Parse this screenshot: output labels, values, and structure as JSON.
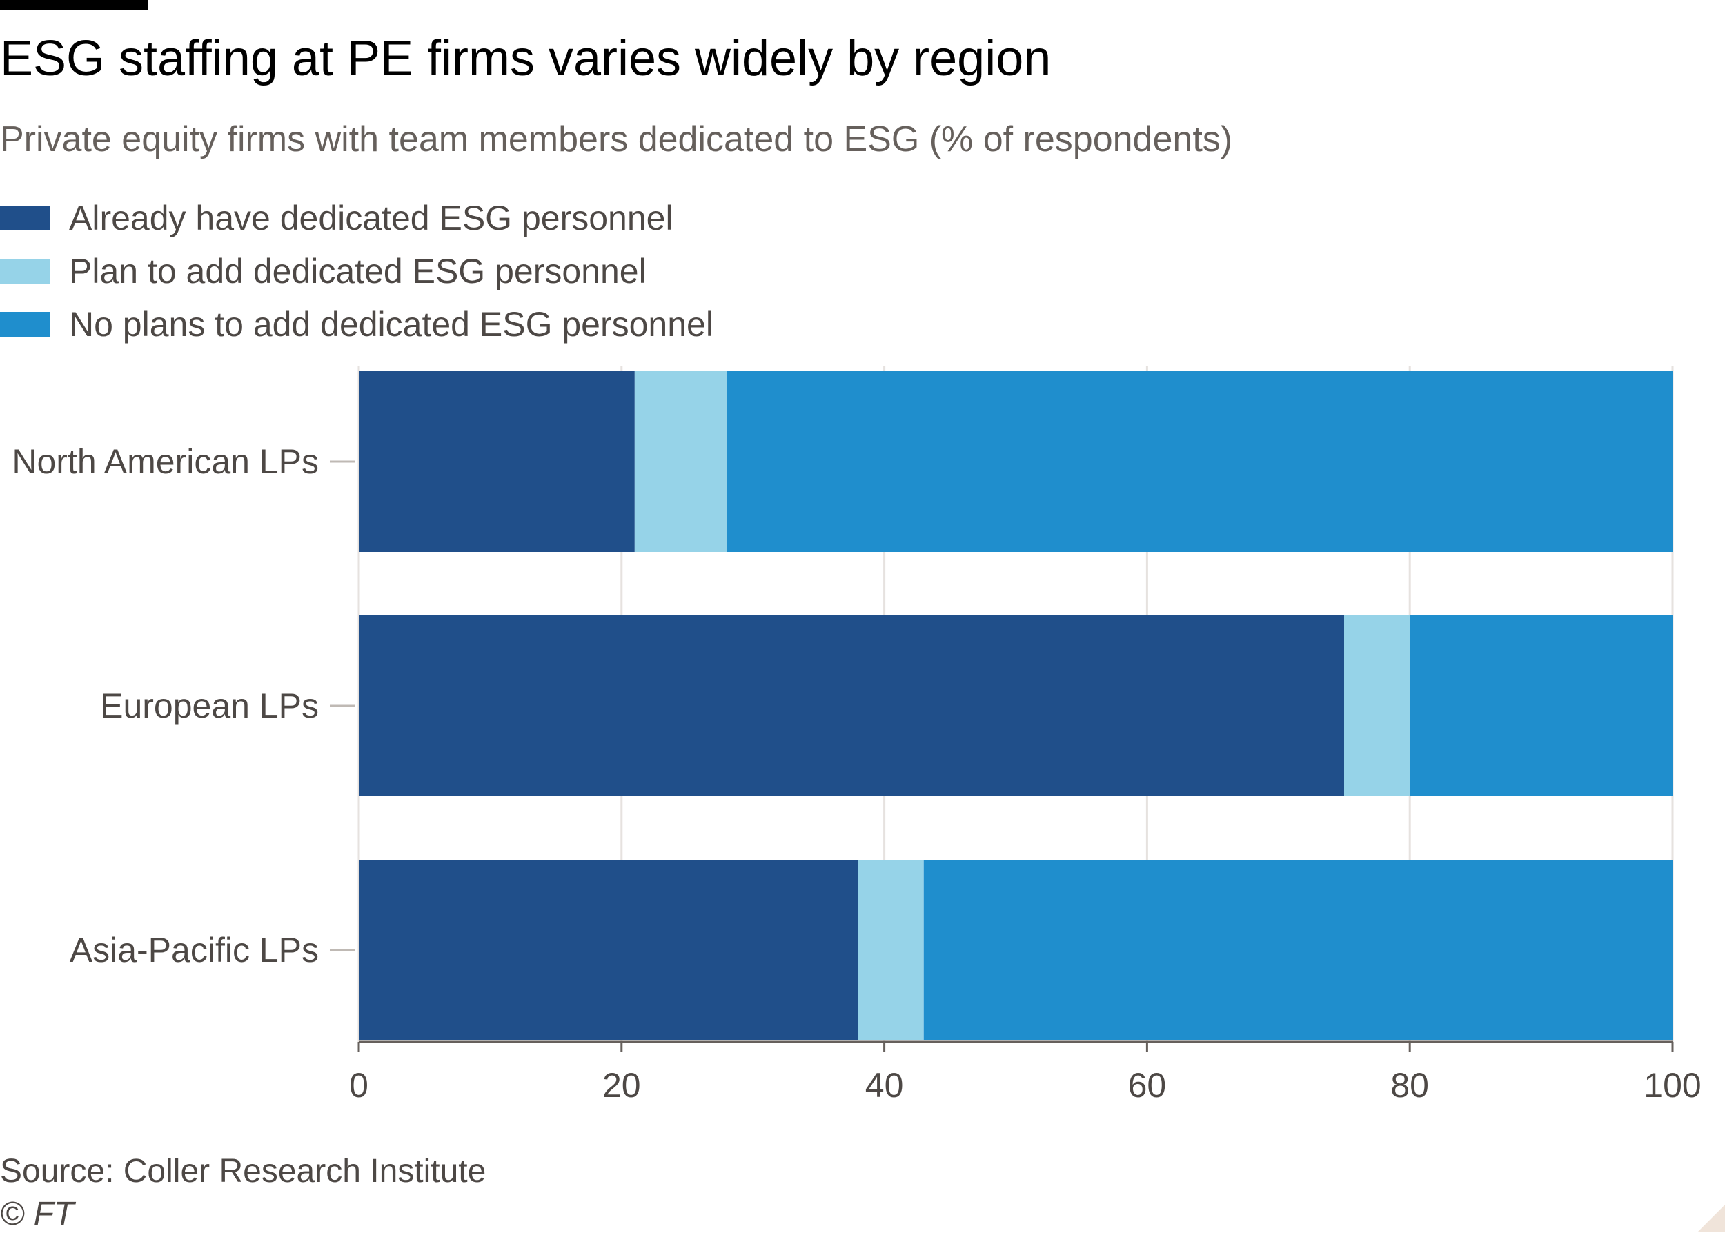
{
  "header": {
    "title": "ESG staffing at PE firms varies widely by region",
    "subtitle": "Private equity firms with team members dedicated to ESG (% of respondents)"
  },
  "legend": [
    {
      "label": "Already have dedicated ESG personnel",
      "color": "#204f8a"
    },
    {
      "label": "Plan to add dedicated ESG personnel",
      "color": "#96d3e8"
    },
    {
      "label": "No plans to add dedicated ESG personnel",
      "color": "#1f8ecd"
    }
  ],
  "chart_data": {
    "type": "bar",
    "orientation": "horizontal",
    "stacked": true,
    "categories": [
      "North American LPs",
      "European LPs",
      "Asia-Pacific LPs"
    ],
    "series": [
      {
        "name": "Already have dedicated ESG personnel",
        "color": "#204f8a",
        "values": [
          21,
          75,
          38
        ]
      },
      {
        "name": "Plan to add dedicated ESG personnel",
        "color": "#96d3e8",
        "values": [
          7,
          5,
          5
        ]
      },
      {
        "name": "No plans to add dedicated ESG personnel",
        "color": "#1f8ecd",
        "values": [
          72,
          20,
          57
        ]
      }
    ],
    "xlim": [
      0,
      100
    ],
    "xticks": [
      0,
      20,
      40,
      60,
      80,
      100
    ],
    "grid": true,
    "legend_position": "top-left"
  },
  "footer": {
    "source": "Source: Coller Research Institute",
    "copyright": "© FT"
  }
}
